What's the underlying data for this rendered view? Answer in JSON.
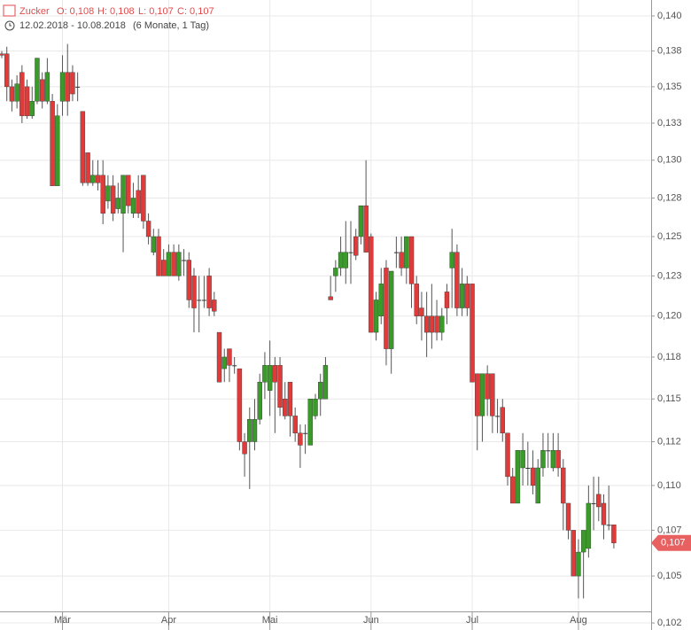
{
  "chart_data": {
    "type": "candlestick",
    "title": "Zucker",
    "ohlc_texts": [
      "O: 0,108",
      "H: 0,108",
      "L: 0,107",
      "C: 0,107"
    ],
    "period": "12.02.2018 - 10.08.2018",
    "span": "(6 Monate, 1 Tag)",
    "log_scale": true,
    "grid": true,
    "up_color": "#3a9a2a",
    "down_color": "#e03b3b",
    "flat_color": "#333333",
    "last_price": {
      "value": 0.1068,
      "label": "0,107",
      "color": "#e86060"
    },
    "ylim": [
      0.10213,
      0.14115
    ],
    "yticks": [
      {
        "value": 0.1025,
        "label": "0,102"
      },
      {
        "value": 0.105,
        "label": "0,105"
      },
      {
        "value": 0.1075,
        "label": "0,107"
      },
      {
        "value": 0.11,
        "label": "0,110"
      },
      {
        "value": 0.1125,
        "label": "0,112"
      },
      {
        "value": 0.115,
        "label": "0,115"
      },
      {
        "value": 0.1175,
        "label": "0,118"
      },
      {
        "value": 0.12,
        "label": "0,120"
      },
      {
        "value": 0.1225,
        "label": "0,123"
      },
      {
        "value": 0.125,
        "label": "0,125"
      },
      {
        "value": 0.1275,
        "label": "0,128"
      },
      {
        "value": 0.13,
        "label": "0,130"
      },
      {
        "value": 0.1325,
        "label": "0,133"
      },
      {
        "value": 0.135,
        "label": "0,135"
      },
      {
        "value": 0.1375,
        "label": "0,138"
      },
      {
        "value": 0.14,
        "label": "0,140"
      }
    ],
    "categories": [
      null,
      null,
      null,
      null,
      null,
      null,
      null,
      null,
      null,
      null,
      null,
      null,
      "Mär",
      null,
      null,
      null,
      null,
      null,
      null,
      null,
      null,
      null,
      null,
      null,
      null,
      null,
      null,
      null,
      null,
      null,
      null,
      null,
      null,
      "Apr",
      null,
      null,
      null,
      null,
      null,
      null,
      null,
      null,
      null,
      null,
      null,
      null,
      null,
      null,
      null,
      null,
      null,
      null,
      null,
      "Mai",
      null,
      null,
      null,
      null,
      null,
      null,
      null,
      null,
      null,
      null,
      null,
      null,
      null,
      null,
      null,
      null,
      null,
      null,
      null,
      "Jun",
      null,
      null,
      null,
      null,
      null,
      null,
      null,
      null,
      null,
      null,
      null,
      null,
      null,
      null,
      null,
      null,
      null,
      null,
      null,
      "Jul",
      null,
      null,
      null,
      null,
      null,
      null,
      null,
      null,
      null,
      null,
      null,
      null,
      null,
      null,
      null,
      null,
      null,
      null,
      null,
      null,
      "Aug",
      null,
      null,
      null,
      null,
      null,
      null,
      null
    ],
    "open": [
      0.1373,
      0.1373,
      0.135,
      0.134,
      0.136,
      0.135,
      0.133,
      0.134,
      0.1355,
      0.134,
      0.134,
      0.1283,
      0.134,
      0.136,
      0.136,
      0.135,
      0.1333,
      0.1305,
      0.1285,
      0.129,
      0.129,
      0.1273,
      0.1283,
      0.1268,
      0.1265,
      0.129,
      0.1265,
      0.128,
      0.129,
      0.126,
      0.124,
      0.125,
      0.1235,
      0.1225,
      0.124,
      0.1225,
      0.1235,
      0.1235,
      0.1225,
      0.121,
      0.121,
      0.1225,
      0.121,
      0.119,
      0.1168,
      0.118,
      0.117,
      0.1168,
      0.1125,
      0.1125,
      0.1125,
      0.1138,
      0.116,
      0.1155,
      0.117,
      0.117,
      0.115,
      0.116,
      0.114,
      0.113,
      0.113,
      0.1123,
      0.114,
      0.115,
      0.115,
      0.1212,
      0.1225,
      0.123,
      0.123,
      0.124,
      0.125,
      0.125,
      0.127,
      0.125,
      0.119,
      0.12,
      0.123,
      0.118,
      0.124,
      0.124,
      0.123,
      0.125,
      0.122,
      0.1205,
      0.12,
      0.12,
      0.12,
      0.119,
      0.1215,
      0.123,
      0.124,
      0.1205,
      0.122,
      0.122,
      0.1165,
      0.114,
      0.1165,
      0.1165,
      0.114,
      0.1145,
      0.113,
      0.1105,
      0.109,
      0.111,
      0.111,
      0.111,
      0.109,
      0.111,
      0.112,
      0.111,
      0.112,
      0.111,
      0.109,
      0.1075,
      0.105,
      0.1063,
      0.1065,
      0.109,
      0.1095,
      0.109,
      0.1078,
      0.1078
    ],
    "high": [
      0.1375,
      0.1378,
      0.1355,
      0.1358,
      0.1365,
      0.1355,
      0.135,
      0.137,
      0.136,
      0.137,
      0.1345,
      0.1338,
      0.1372,
      0.138,
      0.1365,
      0.136,
      0.1333,
      0.1305,
      0.13,
      0.13,
      0.13,
      0.129,
      0.129,
      0.1285,
      0.129,
      0.129,
      0.1285,
      0.129,
      0.129,
      0.1265,
      0.1255,
      0.1255,
      0.1242,
      0.1245,
      0.1245,
      0.1245,
      0.1242,
      0.124,
      0.123,
      0.1225,
      0.1225,
      0.123,
      0.1215,
      0.119,
      0.118,
      0.118,
      0.1175,
      0.1168,
      0.113,
      0.1145,
      0.115,
      0.1165,
      0.1178,
      0.1185,
      0.1175,
      0.1175,
      0.116,
      0.116,
      0.1145,
      0.1135,
      0.1135,
      0.115,
      0.1153,
      0.1165,
      0.1175,
      0.1225,
      0.1235,
      0.125,
      0.126,
      0.126,
      0.1255,
      0.127,
      0.13,
      0.1252,
      0.1215,
      0.123,
      0.1235,
      0.1228,
      0.125,
      0.125,
      0.125,
      0.125,
      0.1225,
      0.1215,
      0.1215,
      0.122,
      0.121,
      0.1205,
      0.122,
      0.1255,
      0.1245,
      0.123,
      0.1225,
      0.122,
      0.1165,
      0.1165,
      0.117,
      0.1165,
      0.115,
      0.115,
      0.113,
      0.111,
      0.112,
      0.113,
      0.1125,
      0.112,
      0.1115,
      0.113,
      0.113,
      0.113,
      0.113,
      0.1115,
      0.109,
      0.1075,
      0.107,
      0.1075,
      0.11,
      0.1105,
      0.1105,
      0.1095,
      0.11,
      0.1078
    ],
    "low": [
      0.137,
      0.134,
      0.1333,
      0.1335,
      0.1325,
      0.1328,
      0.1328,
      0.1338,
      0.1335,
      0.1338,
      0.1283,
      0.1283,
      0.133,
      0.133,
      0.134,
      0.134,
      0.1283,
      0.1283,
      0.1283,
      0.128,
      0.1258,
      0.1268,
      0.126,
      0.1265,
      0.124,
      0.1265,
      0.1262,
      0.1262,
      0.1255,
      0.1245,
      0.1238,
      0.1225,
      0.1225,
      0.1225,
      0.1225,
      0.1222,
      0.1225,
      0.1205,
      0.119,
      0.119,
      0.1205,
      0.12,
      0.12,
      0.116,
      0.116,
      0.116,
      0.1165,
      0.112,
      0.1105,
      0.1098,
      0.112,
      0.1135,
      0.115,
      0.114,
      0.113,
      0.114,
      0.1138,
      0.1128,
      0.1125,
      0.111,
      0.1118,
      0.1123,
      0.1138,
      0.114,
      0.115,
      0.121,
      0.1215,
      0.1225,
      0.122,
      0.122,
      0.1235,
      0.1245,
      0.124,
      0.119,
      0.1185,
      0.1195,
      0.117,
      0.1165,
      0.123,
      0.1225,
      0.122,
      0.1205,
      0.1195,
      0.1185,
      0.1175,
      0.118,
      0.1185,
      0.1185,
      0.1195,
      0.1205,
      0.12,
      0.12,
      0.12,
      0.116,
      0.112,
      0.1125,
      0.114,
      0.113,
      0.113,
      0.1125,
      0.11,
      0.109,
      0.109,
      0.11,
      0.11,
      0.1095,
      0.109,
      0.1105,
      0.111,
      0.1108,
      0.1105,
      0.1075,
      0.107,
      0.105,
      0.1038,
      0.1038,
      0.106,
      0.1075,
      0.108,
      0.107,
      0.1075,
      0.1065
    ],
    "close": [
      0.1372,
      0.135,
      0.134,
      0.1352,
      0.133,
      0.133,
      0.134,
      0.137,
      0.134,
      0.136,
      0.1283,
      0.133,
      0.136,
      0.134,
      0.1345,
      0.135,
      0.1285,
      0.1285,
      0.129,
      0.1285,
      0.1265,
      0.1283,
      0.1265,
      0.1275,
      0.129,
      0.127,
      0.1275,
      0.1265,
      0.126,
      0.125,
      0.125,
      0.1225,
      0.1225,
      0.124,
      0.1225,
      0.124,
      0.1235,
      0.121,
      0.1205,
      0.121,
      0.121,
      0.1205,
      0.1203,
      0.116,
      0.1175,
      0.117,
      0.117,
      0.1125,
      0.1118,
      0.1138,
      0.1138,
      0.116,
      0.117,
      0.117,
      0.116,
      0.1145,
      0.114,
      0.114,
      0.113,
      0.1123,
      0.113,
      0.115,
      0.115,
      0.116,
      0.117,
      0.121,
      0.123,
      0.124,
      0.124,
      0.124,
      0.1238,
      0.127,
      0.124,
      0.119,
      0.121,
      0.122,
      0.118,
      0.1228,
      0.124,
      0.123,
      0.125,
      0.122,
      0.12,
      0.12,
      0.119,
      0.119,
      0.119,
      0.12,
      0.1205,
      0.124,
      0.1205,
      0.122,
      0.1205,
      0.116,
      0.114,
      0.1165,
      0.115,
      0.114,
      0.114,
      0.113,
      0.1105,
      0.109,
      0.112,
      0.112,
      0.111,
      0.11,
      0.111,
      0.112,
      0.112,
      0.112,
      0.111,
      0.109,
      0.1075,
      0.105,
      0.1063,
      0.1075,
      0.109,
      0.109,
      0.1088,
      0.1078,
      0.1078,
      0.1068
    ]
  }
}
